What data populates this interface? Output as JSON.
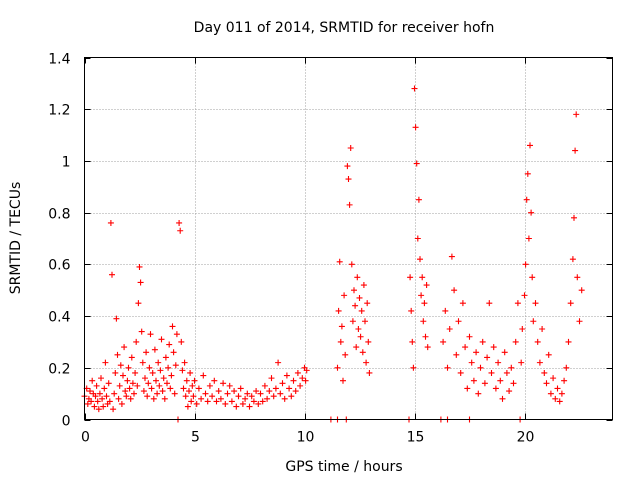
{
  "chart_data": {
    "type": "scatter",
    "title": "Day 011 of 2014, SRMTID for receiver hofn",
    "xlabel": "GPS time / hours",
    "ylabel": "SRMTID / TECUs",
    "xlim": [
      0,
      24
    ],
    "ylim": [
      0,
      1.4
    ],
    "xticks": [
      0,
      5,
      10,
      15,
      20
    ],
    "yticks": [
      0,
      0.2,
      0.4,
      0.6,
      0.8,
      1,
      1.2,
      1.4
    ],
    "ytick_labels": [
      "0",
      "0.2",
      "0.4",
      "0.6",
      "0.8",
      "1",
      "1.2",
      "1.4"
    ],
    "grid": true,
    "marker": "+",
    "marker_color": "#ff0000",
    "series": [
      {
        "name": "SRMTID",
        "points": [
          [
            0.0,
            0.09
          ],
          [
            0.1,
            0.12
          ],
          [
            0.15,
            0.06
          ],
          [
            0.2,
            0.08
          ],
          [
            0.25,
            0.11
          ],
          [
            0.3,
            0.07
          ],
          [
            0.35,
            0.15
          ],
          [
            0.4,
            0.1
          ],
          [
            0.45,
            0.05
          ],
          [
            0.5,
            0.09
          ],
          [
            0.55,
            0.13
          ],
          [
            0.6,
            0.07
          ],
          [
            0.65,
            0.04
          ],
          [
            0.7,
            0.1
          ],
          [
            0.75,
            0.16
          ],
          [
            0.8,
            0.08
          ],
          [
            0.85,
            0.05
          ],
          [
            0.9,
            0.12
          ],
          [
            0.95,
            0.22
          ],
          [
            1.0,
            0.09
          ],
          [
            1.05,
            0.06
          ],
          [
            1.1,
            0.14
          ],
          [
            1.15,
            0.07
          ],
          [
            1.2,
            0.76
          ],
          [
            1.25,
            0.56
          ],
          [
            1.3,
            0.04
          ],
          [
            1.35,
            0.1
          ],
          [
            1.4,
            0.18
          ],
          [
            1.45,
            0.39
          ],
          [
            1.5,
            0.25
          ],
          [
            1.55,
            0.08
          ],
          [
            1.6,
            0.13
          ],
          [
            1.65,
            0.21
          ],
          [
            1.7,
            0.06
          ],
          [
            1.75,
            0.17
          ],
          [
            1.8,
            0.28
          ],
          [
            1.85,
            0.11
          ],
          [
            1.9,
            0.09
          ],
          [
            1.95,
            0.15
          ],
          [
            2.0,
            0.2
          ],
          [
            2.05,
            0.12
          ],
          [
            2.1,
            0.08
          ],
          [
            2.15,
            0.24
          ],
          [
            2.2,
            0.14
          ],
          [
            2.25,
            0.1
          ],
          [
            2.3,
            0.18
          ],
          [
            2.35,
            0.3
          ],
          [
            2.4,
            0.13
          ],
          [
            2.45,
            0.45
          ],
          [
            2.5,
            0.59
          ],
          [
            2.55,
            0.53
          ],
          [
            2.6,
            0.34
          ],
          [
            2.65,
            0.22
          ],
          [
            2.7,
            0.11
          ],
          [
            2.75,
            0.16
          ],
          [
            2.8,
            0.26
          ],
          [
            2.85,
            0.09
          ],
          [
            2.9,
            0.14
          ],
          [
            2.95,
            0.2
          ],
          [
            3.0,
            0.33
          ],
          [
            3.05,
            0.12
          ],
          [
            3.1,
            0.18
          ],
          [
            3.15,
            0.08
          ],
          [
            3.2,
            0.27
          ],
          [
            3.25,
            0.15
          ],
          [
            3.3,
            0.1
          ],
          [
            3.35,
            0.22
          ],
          [
            3.4,
            0.13
          ],
          [
            3.45,
            0.19
          ],
          [
            3.5,
            0.31
          ],
          [
            3.55,
            0.11
          ],
          [
            3.6,
            0.16
          ],
          [
            3.65,
            0.08
          ],
          [
            3.7,
            0.24
          ],
          [
            3.75,
            0.14
          ],
          [
            3.8,
            0.2
          ],
          [
            3.85,
            0.29
          ],
          [
            3.9,
            0.12
          ],
          [
            3.95,
            0.17
          ],
          [
            4.0,
            0.36
          ],
          [
            4.05,
            0.26
          ],
          [
            4.1,
            0.1
          ],
          [
            4.15,
            0.21
          ],
          [
            4.2,
            0.33
          ],
          [
            4.25,
            0.0
          ],
          [
            4.3,
            0.76
          ],
          [
            4.35,
            0.73
          ],
          [
            4.4,
            0.3
          ],
          [
            4.45,
            0.19
          ],
          [
            4.5,
            0.12
          ],
          [
            4.55,
            0.22
          ],
          [
            4.6,
            0.09
          ],
          [
            4.65,
            0.15
          ],
          [
            4.7,
            0.05
          ],
          [
            4.75,
            0.11
          ],
          [
            4.8,
            0.18
          ],
          [
            4.85,
            0.07
          ],
          [
            4.9,
            0.13
          ],
          [
            4.95,
            0.09
          ],
          [
            5.0,
            0.15
          ],
          [
            5.1,
            0.06
          ],
          [
            5.2,
            0.12
          ],
          [
            5.3,
            0.08
          ],
          [
            5.4,
            0.17
          ],
          [
            5.5,
            0.1
          ],
          [
            5.6,
            0.07
          ],
          [
            5.7,
            0.13
          ],
          [
            5.8,
            0.09
          ],
          [
            5.9,
            0.15
          ],
          [
            6.0,
            0.07
          ],
          [
            6.1,
            0.11
          ],
          [
            6.2,
            0.08
          ],
          [
            6.3,
            0.14
          ],
          [
            6.4,
            0.06
          ],
          [
            6.5,
            0.1
          ],
          [
            6.6,
            0.13
          ],
          [
            6.7,
            0.07
          ],
          [
            6.8,
            0.11
          ],
          [
            6.9,
            0.05
          ],
          [
            7.0,
            0.09
          ],
          [
            7.1,
            0.12
          ],
          [
            7.2,
            0.06
          ],
          [
            7.3,
            0.08
          ],
          [
            7.4,
            0.1
          ],
          [
            7.5,
            0.05
          ],
          [
            7.6,
            0.09
          ],
          [
            7.7,
            0.07
          ],
          [
            7.8,
            0.11
          ],
          [
            7.9,
            0.06
          ],
          [
            8.0,
            0.1
          ],
          [
            8.1,
            0.07
          ],
          [
            8.2,
            0.13
          ],
          [
            8.3,
            0.08
          ],
          [
            8.4,
            0.11
          ],
          [
            8.5,
            0.16
          ],
          [
            8.6,
            0.09
          ],
          [
            8.7,
            0.12
          ],
          [
            8.8,
            0.22
          ],
          [
            8.9,
            0.1
          ],
          [
            9.0,
            0.14
          ],
          [
            9.1,
            0.08
          ],
          [
            9.2,
            0.17
          ],
          [
            9.3,
            0.12
          ],
          [
            9.4,
            0.09
          ],
          [
            9.5,
            0.15
          ],
          [
            9.6,
            0.11
          ],
          [
            9.7,
            0.18
          ],
          [
            9.8,
            0.13
          ],
          [
            9.9,
            0.16
          ],
          [
            10.0,
            0.2
          ],
          [
            10.05,
            0.15
          ],
          [
            10.1,
            0.19
          ],
          [
            11.2,
            0.0
          ],
          [
            11.5,
            0.0
          ],
          [
            11.5,
            0.2
          ],
          [
            11.55,
            0.42
          ],
          [
            11.6,
            0.61
          ],
          [
            11.65,
            0.3
          ],
          [
            11.7,
            0.36
          ],
          [
            11.75,
            0.15
          ],
          [
            11.8,
            0.48
          ],
          [
            11.85,
            0.25
          ],
          [
            11.9,
            0.0
          ],
          [
            11.95,
            0.98
          ],
          [
            12.0,
            0.93
          ],
          [
            12.05,
            0.83
          ],
          [
            12.1,
            1.05
          ],
          [
            12.15,
            0.6
          ],
          [
            12.2,
            0.38
          ],
          [
            12.25,
            0.5
          ],
          [
            12.3,
            0.44
          ],
          [
            12.35,
            0.28
          ],
          [
            12.4,
            0.55
          ],
          [
            12.45,
            0.35
          ],
          [
            12.5,
            0.47
          ],
          [
            12.55,
            0.32
          ],
          [
            12.6,
            0.42
          ],
          [
            12.65,
            0.26
          ],
          [
            12.7,
            0.52
          ],
          [
            12.75,
            0.38
          ],
          [
            12.8,
            0.22
          ],
          [
            12.85,
            0.45
          ],
          [
            12.9,
            0.3
          ],
          [
            12.95,
            0.18
          ],
          [
            14.75,
            0.0
          ],
          [
            14.8,
            0.55
          ],
          [
            14.85,
            0.42
          ],
          [
            14.9,
            0.3
          ],
          [
            14.95,
            0.2
          ],
          [
            15.0,
            1.28
          ],
          [
            15.05,
            1.13
          ],
          [
            15.1,
            0.99
          ],
          [
            15.15,
            0.7
          ],
          [
            15.2,
            0.85
          ],
          [
            15.25,
            0.62
          ],
          [
            15.3,
            0.48
          ],
          [
            15.35,
            0.55
          ],
          [
            15.4,
            0.38
          ],
          [
            15.45,
            0.45
          ],
          [
            15.5,
            0.32
          ],
          [
            15.55,
            0.52
          ],
          [
            15.6,
            0.28
          ],
          [
            16.2,
            0.0
          ],
          [
            16.3,
            0.3
          ],
          [
            16.4,
            0.42
          ],
          [
            16.5,
            0.0
          ],
          [
            16.5,
            0.2
          ],
          [
            16.6,
            0.35
          ],
          [
            16.7,
            0.63
          ],
          [
            16.8,
            0.5
          ],
          [
            16.9,
            0.25
          ],
          [
            17.0,
            0.38
          ],
          [
            17.1,
            0.18
          ],
          [
            17.2,
            0.45
          ],
          [
            17.3,
            0.28
          ],
          [
            17.4,
            0.12
          ],
          [
            17.5,
            0.0
          ],
          [
            17.5,
            0.32
          ],
          [
            17.6,
            0.22
          ],
          [
            17.7,
            0.15
          ],
          [
            17.8,
            0.26
          ],
          [
            17.9,
            0.1
          ],
          [
            18.0,
            0.2
          ],
          [
            18.1,
            0.3
          ],
          [
            18.2,
            0.14
          ],
          [
            18.3,
            0.24
          ],
          [
            18.4,
            0.45
          ],
          [
            18.5,
            0.18
          ],
          [
            18.6,
            0.28
          ],
          [
            18.7,
            0.12
          ],
          [
            18.8,
            0.22
          ],
          [
            18.9,
            0.15
          ],
          [
            19.0,
            0.08
          ],
          [
            19.1,
            0.26
          ],
          [
            19.2,
            0.18
          ],
          [
            19.3,
            0.11
          ],
          [
            19.4,
            0.2
          ],
          [
            19.5,
            0.14
          ],
          [
            19.6,
            0.3
          ],
          [
            19.7,
            0.45
          ],
          [
            19.8,
            0.0
          ],
          [
            19.85,
            0.22
          ],
          [
            19.9,
            0.35
          ],
          [
            20.0,
            0.48
          ],
          [
            20.05,
            0.6
          ],
          [
            20.1,
            0.85
          ],
          [
            20.15,
            0.95
          ],
          [
            20.2,
            0.7
          ],
          [
            20.25,
            1.06
          ],
          [
            20.3,
            0.8
          ],
          [
            20.35,
            0.55
          ],
          [
            20.4,
            0.38
          ],
          [
            20.5,
            0.45
          ],
          [
            20.6,
            0.3
          ],
          [
            20.7,
            0.22
          ],
          [
            20.8,
            0.35
          ],
          [
            20.9,
            0.18
          ],
          [
            21.0,
            0.14
          ],
          [
            21.1,
            0.25
          ],
          [
            21.2,
            0.1
          ],
          [
            21.3,
            0.16
          ],
          [
            21.4,
            0.08
          ],
          [
            21.5,
            0.12
          ],
          [
            21.6,
            0.07
          ],
          [
            21.7,
            0.1
          ],
          [
            21.8,
            0.15
          ],
          [
            21.9,
            0.2
          ],
          [
            22.0,
            0.3
          ],
          [
            22.1,
            0.45
          ],
          [
            22.2,
            0.62
          ],
          [
            22.25,
            0.78
          ],
          [
            22.3,
            1.04
          ],
          [
            22.35,
            1.18
          ],
          [
            22.4,
            0.55
          ],
          [
            22.5,
            0.38
          ],
          [
            22.6,
            0.5
          ]
        ]
      }
    ]
  }
}
